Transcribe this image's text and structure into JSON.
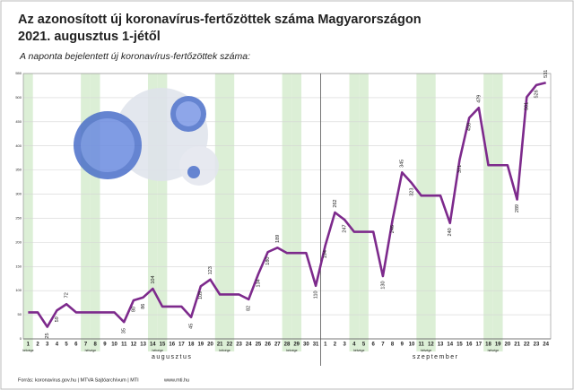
{
  "chart_data": {
    "type": "line",
    "title": "Az azonosított új koronavírus-fertőzöttek száma Magyarországon",
    "title_line2": "2021. augusztus 1-jétől",
    "subtitle": "A naponta bejelentett új koronavírus-fertőzöttek száma:",
    "categories": [
      "1",
      "2",
      "3",
      "4",
      "5",
      "6",
      "7",
      "8",
      "9",
      "10",
      "11",
      "12",
      "13",
      "14",
      "15",
      "16",
      "17",
      "18",
      "19",
      "20",
      "21",
      "22",
      "23",
      "24",
      "25",
      "26",
      "27",
      "28",
      "29",
      "30",
      "31",
      "1",
      "2",
      "3",
      "4",
      "5",
      "6",
      "7",
      "8",
      "9",
      "10",
      "11",
      "12",
      "13",
      "14",
      "15",
      "16",
      "17",
      "18",
      "19",
      "20",
      "21",
      "22",
      "23",
      "24"
    ],
    "x_groups": [
      "augusztus",
      "szeptember"
    ],
    "weekend_label": "hétvége",
    "series": [
      {
        "name": "Új fertőzöttek",
        "color": "#7d2a8c",
        "values": [
          55,
          55,
          25,
          59,
          72,
          55,
          55,
          55,
          55,
          55,
          35,
          80,
          86,
          104,
          67,
          67,
          67,
          45,
          109,
          123,
          92,
          92,
          92,
          82,
          134,
          180,
          189,
          178,
          178,
          178,
          110,
          194,
          262,
          247,
          222,
          222,
          222,
          130,
          246,
          345,
          323,
          297,
          297,
          297,
          240,
          371,
          458,
          479,
          360,
          360,
          360,
          289,
          501,
          526,
          531
        ],
        "value_labels": [
          null,
          null,
          "25",
          "59",
          "72",
          null,
          null,
          null,
          null,
          null,
          "35",
          "80",
          "86",
          "104",
          null,
          null,
          null,
          "45",
          "109",
          "123",
          null,
          null,
          null,
          "82",
          "134",
          "180",
          "189",
          null,
          null,
          null,
          "110",
          "194",
          "262",
          "247",
          null,
          null,
          null,
          "130",
          "246",
          "345",
          "323",
          null,
          null,
          null,
          "240",
          "371",
          "458",
          "479",
          null,
          null,
          null,
          "289",
          "501",
          "526",
          "531"
        ]
      }
    ],
    "ylim": [
      0,
      550
    ],
    "yticks": [
      0,
      50,
      100,
      150,
      200,
      250,
      300,
      350,
      400,
      450,
      500,
      550
    ],
    "grid": true,
    "source": "Forrás: koronavirus.gov.hu | MTVA Sajtóarchívum | MTI",
    "website": "www.mti.hu"
  }
}
